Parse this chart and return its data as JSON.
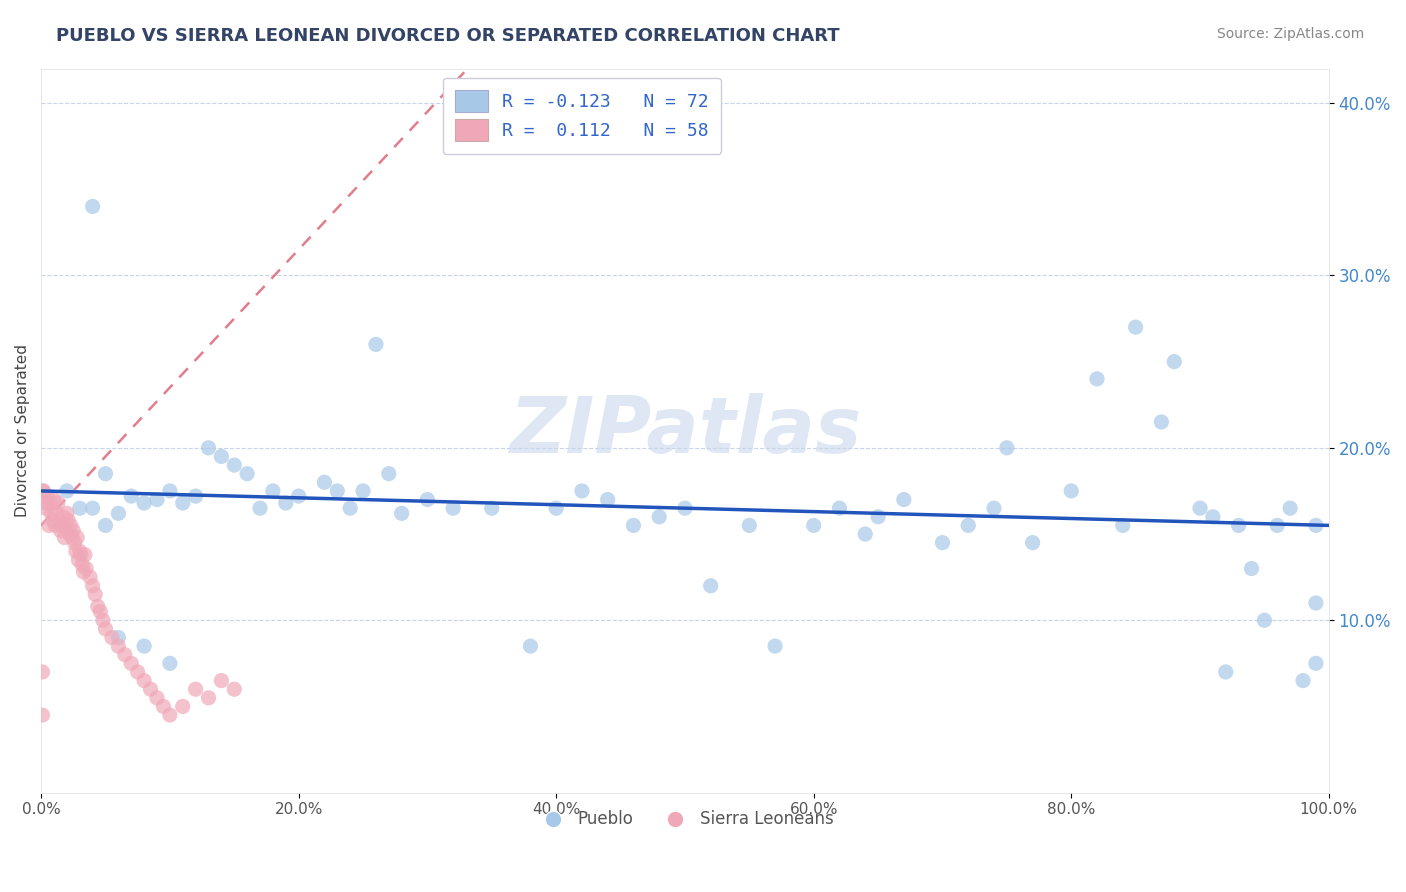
{
  "title": "PUEBLO VS SIERRA LEONEAN DIVORCED OR SEPARATED CORRELATION CHART",
  "source_text": "Source: ZipAtlas.com",
  "ylabel": "Divorced or Separated",
  "xmin": 0.0,
  "xmax": 1.0,
  "ymin": 0.0,
  "ymax": 0.42,
  "xtick_labels": [
    "0.0%",
    "20.0%",
    "40.0%",
    "60.0%",
    "80.0%",
    "100.0%"
  ],
  "xtick_vals": [
    0.0,
    0.2,
    0.4,
    0.6,
    0.8,
    1.0
  ],
  "ytick_labels": [
    "40.0%",
    "30.0%",
    "20.0%",
    "10.0%"
  ],
  "ytick_vals": [
    0.4,
    0.3,
    0.2,
    0.1
  ],
  "pueblo_color": "#a8c8e8",
  "sierra_color": "#f0a8b8",
  "pueblo_line_color": "#2255bb",
  "sierra_line_color": "#dd6677",
  "watermark": "ZIPatlas",
  "background_color": "#ffffff",
  "grid_color": "#c8d4e8",
  "title_color": "#334466",
  "source_color": "#888888",
  "ytick_color": "#4488cc",
  "xtick_color": "#555555",
  "pueblo_legend_label": "R = -0.123   N = 72",
  "sierra_legend_label": "R =  0.112   N = 58",
  "pueblo_x": [
    0.02,
    0.04,
    0.05,
    0.06,
    0.07,
    0.08,
    0.09,
    0.1,
    0.11,
    0.12,
    0.13,
    0.14,
    0.15,
    0.16,
    0.17,
    0.18,
    0.19,
    0.2,
    0.22,
    0.23,
    0.24,
    0.26,
    0.28,
    0.3,
    0.32,
    0.35,
    0.38,
    0.4,
    0.42,
    0.44,
    0.46,
    0.48,
    0.5,
    0.52,
    0.55,
    0.57,
    0.6,
    0.62,
    0.64,
    0.65,
    0.67,
    0.7,
    0.72,
    0.74,
    0.75,
    0.77,
    0.8,
    0.82,
    0.84,
    0.85,
    0.87,
    0.88,
    0.9,
    0.91,
    0.92,
    0.93,
    0.94,
    0.95,
    0.96,
    0.97,
    0.98,
    0.99,
    0.99,
    0.99,
    0.25,
    0.27,
    0.1,
    0.08,
    0.06,
    0.05,
    0.04,
    0.03
  ],
  "pueblo_y": [
    0.175,
    0.165,
    0.185,
    0.162,
    0.172,
    0.168,
    0.17,
    0.175,
    0.168,
    0.172,
    0.2,
    0.195,
    0.19,
    0.185,
    0.165,
    0.175,
    0.168,
    0.172,
    0.18,
    0.175,
    0.165,
    0.26,
    0.162,
    0.17,
    0.165,
    0.165,
    0.085,
    0.165,
    0.175,
    0.17,
    0.155,
    0.16,
    0.165,
    0.12,
    0.155,
    0.085,
    0.155,
    0.165,
    0.15,
    0.16,
    0.17,
    0.145,
    0.155,
    0.165,
    0.2,
    0.145,
    0.175,
    0.24,
    0.155,
    0.27,
    0.215,
    0.25,
    0.165,
    0.16,
    0.07,
    0.155,
    0.13,
    0.1,
    0.155,
    0.165,
    0.065,
    0.155,
    0.075,
    0.11,
    0.175,
    0.185,
    0.075,
    0.085,
    0.09,
    0.155,
    0.34,
    0.165
  ],
  "sierra_x": [
    0.001,
    0.002,
    0.003,
    0.004,
    0.005,
    0.006,
    0.007,
    0.008,
    0.009,
    0.01,
    0.011,
    0.012,
    0.013,
    0.015,
    0.016,
    0.017,
    0.018,
    0.019,
    0.02,
    0.021,
    0.022,
    0.023,
    0.024,
    0.025,
    0.026,
    0.027,
    0.028,
    0.029,
    0.03,
    0.031,
    0.032,
    0.033,
    0.034,
    0.035,
    0.038,
    0.04,
    0.042,
    0.044,
    0.046,
    0.048,
    0.05,
    0.055,
    0.06,
    0.065,
    0.07,
    0.075,
    0.08,
    0.085,
    0.09,
    0.095,
    0.1,
    0.11,
    0.12,
    0.13,
    0.14,
    0.15,
    0.001,
    0.001
  ],
  "sierra_y": [
    0.175,
    0.175,
    0.165,
    0.168,
    0.172,
    0.155,
    0.168,
    0.162,
    0.158,
    0.17,
    0.155,
    0.162,
    0.168,
    0.152,
    0.155,
    0.16,
    0.148,
    0.155,
    0.162,
    0.158,
    0.15,
    0.155,
    0.148,
    0.152,
    0.145,
    0.14,
    0.148,
    0.135,
    0.14,
    0.138,
    0.132,
    0.128,
    0.138,
    0.13,
    0.125,
    0.12,
    0.115,
    0.108,
    0.105,
    0.1,
    0.095,
    0.09,
    0.085,
    0.08,
    0.075,
    0.07,
    0.065,
    0.06,
    0.055,
    0.05,
    0.045,
    0.05,
    0.06,
    0.055,
    0.065,
    0.06,
    0.07,
    0.045
  ]
}
